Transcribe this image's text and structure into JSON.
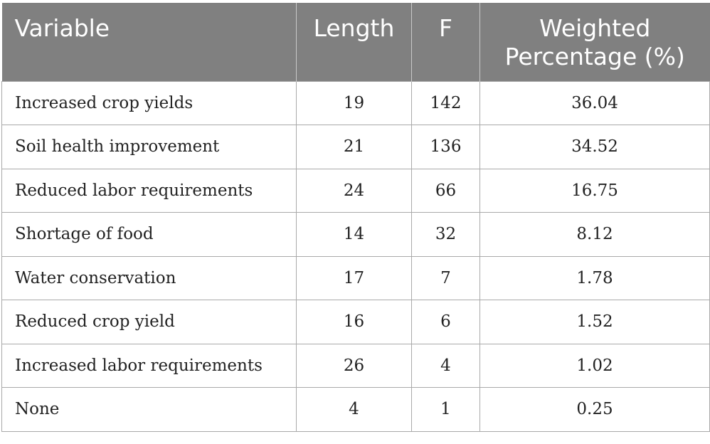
{
  "table": {
    "headers": {
      "variable": "Variable",
      "length": "Length",
      "f": "F",
      "weighted_line1": "Weighted",
      "weighted_line2": "Percentage (%)"
    },
    "rows": [
      {
        "variable": "Increased crop yields",
        "length": "19",
        "f": "142",
        "weighted": "36.04"
      },
      {
        "variable": "Soil health improvement",
        "length": "21",
        "f": "136",
        "weighted": "34.52"
      },
      {
        "variable": "Reduced labor requirements",
        "length": "24",
        "f": "66",
        "weighted": "16.75"
      },
      {
        "variable": "Shortage of food",
        "length": "14",
        "f": "32",
        "weighted": "8.12"
      },
      {
        "variable": "Water conservation",
        "length": "17",
        "f": "7",
        "weighted": "1.78"
      },
      {
        "variable": "Reduced crop yield",
        "length": "16",
        "f": "6",
        "weighted": "1.52"
      },
      {
        "variable": "Increased labor requirements",
        "length": "26",
        "f": "4",
        "weighted": "1.02"
      },
      {
        "variable": "None",
        "length": "4",
        "f": "1",
        "weighted": "0.25"
      }
    ]
  },
  "colors": {
    "header_bg": "#808080",
    "header_text": "#ffffff",
    "grid": "#a9a9a9"
  }
}
